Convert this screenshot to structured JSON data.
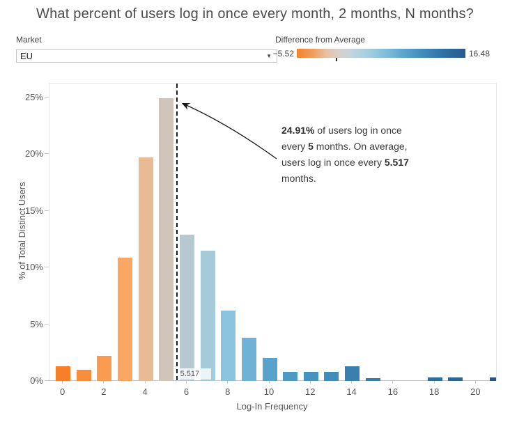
{
  "title": "What percent of users log in once every month, 2 months, N months?",
  "market_filter": {
    "label": "Market",
    "value": "EU"
  },
  "legend": {
    "title": "Difference from Average",
    "min": "−5.52",
    "max": "16.48",
    "orange_color": "#f28231",
    "blue_color": "#285a8e",
    "average_tick_fraction": 0.236
  },
  "annotation": {
    "lines": [
      [
        {
          "t": "24.91%",
          "b": true
        },
        {
          "t": " of users log in once",
          "b": false
        }
      ],
      [
        {
          "t": "every ",
          "b": false
        },
        {
          "t": "5",
          "b": true
        },
        {
          "t": " months. On average,",
          "b": false
        }
      ],
      [
        {
          "t": "users log in once every ",
          "b": false
        },
        {
          "t": "5.517",
          "b": true
        }
      ],
      [
        {
          "t": "months.",
          "b": false
        }
      ]
    ]
  },
  "chart_data": {
    "type": "bar",
    "title": "",
    "xlabel": "Log-In Frequency",
    "ylabel": "% of Total Distinct Users",
    "x": [
      0,
      1,
      2,
      3,
      4,
      5,
      6,
      7,
      8,
      9,
      10,
      11,
      12,
      13,
      14,
      15,
      16,
      17,
      18,
      19,
      20,
      21
    ],
    "values": [
      1.3,
      1.0,
      2.2,
      10.9,
      19.7,
      24.91,
      12.9,
      11.5,
      6.2,
      3.8,
      2.0,
      0.8,
      0.8,
      0.8,
      1.3,
      0.25,
      0,
      0,
      0.3,
      0.3,
      0,
      0.3
    ],
    "colors": [
      "#f87f29",
      "#f88d3e",
      "#f99b51",
      "#f9a763",
      "#e8bb94",
      "#cfc5bb",
      "#b8c8d0",
      "#a5cbdb",
      "#8dc4dd",
      "#70b2d5",
      "#58a2cb",
      "#4f9ac5",
      "#4793bf",
      "#418cb9",
      "#3a80af",
      "#377daa",
      null,
      null,
      "#2e6c9b",
      "#2b6795",
      null,
      "#235684"
    ],
    "color_meaning": "Difference from Average (log-in frequency minus 5.517)",
    "ylim": [
      0,
      26.2
    ],
    "x_ticks": [
      0,
      2,
      4,
      6,
      8,
      10,
      12,
      14,
      16,
      18,
      20
    ],
    "x_tick_labels": [
      "0",
      "2",
      "4",
      "6",
      "8",
      "10",
      "12",
      "14",
      "16",
      "18",
      "20"
    ],
    "y_ticks": [
      0,
      5,
      10,
      15,
      20,
      25
    ],
    "y_tick_labels": [
      "0%",
      "5%",
      "10%",
      "15%",
      "20%",
      "25%"
    ],
    "grid": false,
    "reference_line_x": 5.517,
    "reference_line_label": "5.517",
    "highlighted_bar": {
      "x": 5,
      "value_label": "24.91%"
    }
  }
}
